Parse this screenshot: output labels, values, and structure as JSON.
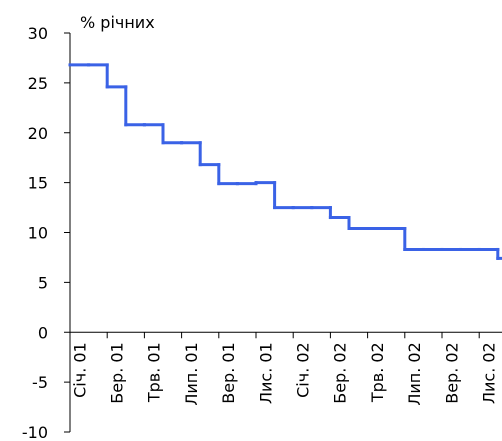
{
  "chart_data": {
    "type": "step",
    "y_label": "% річних",
    "categories": [
      "Січ. 01",
      null,
      "Бер. 01",
      null,
      "Трв. 01",
      null,
      "Лип. 01",
      null,
      "Вер. 01",
      null,
      "Лис. 01",
      null,
      "Січ. 02",
      null,
      "Бер. 02",
      null,
      "Трв. 02",
      null,
      "Лип. 02",
      null,
      "Вер. 02",
      null,
      "Лис. 02",
      null
    ],
    "values": [
      26.8,
      26.8,
      24.6,
      20.8,
      20.8,
      19.0,
      19.0,
      16.8,
      14.9,
      14.9,
      15.0,
      12.5,
      12.5,
      12.5,
      11.5,
      10.4,
      10.4,
      10.4,
      8.3,
      8.3,
      8.3,
      8.3,
      8.3,
      7.4
    ],
    "color": "#3a62e6",
    "ylim": [
      -10,
      30
    ],
    "yticks": [
      -10,
      -5,
      0,
      5,
      10,
      15,
      20,
      25,
      30
    ]
  }
}
